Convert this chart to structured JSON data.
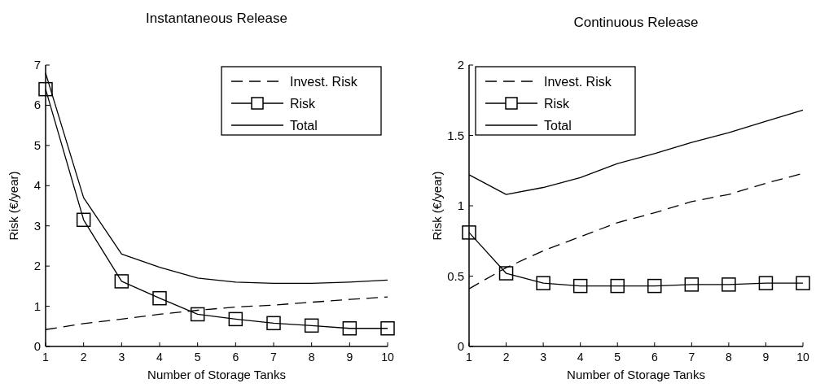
{
  "chart_data": [
    {
      "type": "line",
      "title": "Instantaneous Release",
      "xlabel": "Number of Storage Tanks",
      "ylabel": "Risk (€/year)",
      "x": [
        1,
        2,
        3,
        4,
        5,
        6,
        7,
        8,
        9,
        10
      ],
      "xlim": [
        1,
        10
      ],
      "xticks": [
        1,
        2,
        3,
        4,
        5,
        6,
        7,
        8,
        9,
        10
      ],
      "ylim": [
        0,
        7
      ],
      "yticks": [
        0,
        1,
        2,
        3,
        4,
        5,
        6,
        7
      ],
      "legend": "top right",
      "grid": false,
      "series": [
        {
          "name": "Invest. Risk",
          "color": "#000000",
          "line_style": "dashed",
          "marker": "none",
          "values": [
            0.42,
            0.57,
            0.68,
            0.8,
            0.9,
            0.98,
            1.03,
            1.1,
            1.17,
            1.23
          ]
        },
        {
          "name": "Risk",
          "color": "#000000",
          "line_style": "solid",
          "marker": "square",
          "values": [
            6.4,
            3.15,
            1.62,
            1.2,
            0.8,
            0.68,
            0.58,
            0.52,
            0.45,
            0.45
          ]
        },
        {
          "name": "Total",
          "color": "#000000",
          "line_style": "solid",
          "marker": "none",
          "values": [
            6.8,
            3.7,
            2.3,
            1.97,
            1.7,
            1.6,
            1.57,
            1.57,
            1.6,
            1.65
          ]
        }
      ]
    },
    {
      "type": "line",
      "title": "Continuous Release",
      "xlabel": "Number of Storage Tanks",
      "ylabel": "Risk (€/year)",
      "x": [
        1,
        2,
        3,
        4,
        5,
        6,
        7,
        8,
        9,
        10
      ],
      "xlim": [
        1,
        10
      ],
      "xticks": [
        1,
        2,
        3,
        4,
        5,
        6,
        7,
        8,
        9,
        10
      ],
      "ylim": [
        0,
        2
      ],
      "yticks": [
        0,
        0.5,
        1,
        1.5,
        2
      ],
      "legend": "top left",
      "grid": false,
      "series": [
        {
          "name": "Invest. Risk",
          "color": "#000000",
          "line_style": "dashed",
          "marker": "none",
          "values": [
            0.41,
            0.56,
            0.68,
            0.78,
            0.88,
            0.95,
            1.03,
            1.08,
            1.16,
            1.23
          ]
        },
        {
          "name": "Risk",
          "color": "#000000",
          "line_style": "solid",
          "marker": "square",
          "values": [
            0.81,
            0.52,
            0.45,
            0.43,
            0.43,
            0.43,
            0.44,
            0.44,
            0.45,
            0.45
          ]
        },
        {
          "name": "Total",
          "color": "#000000",
          "line_style": "solid",
          "marker": "none",
          "values": [
            1.22,
            1.08,
            1.13,
            1.2,
            1.3,
            1.37,
            1.45,
            1.52,
            1.6,
            1.68
          ]
        }
      ]
    }
  ]
}
